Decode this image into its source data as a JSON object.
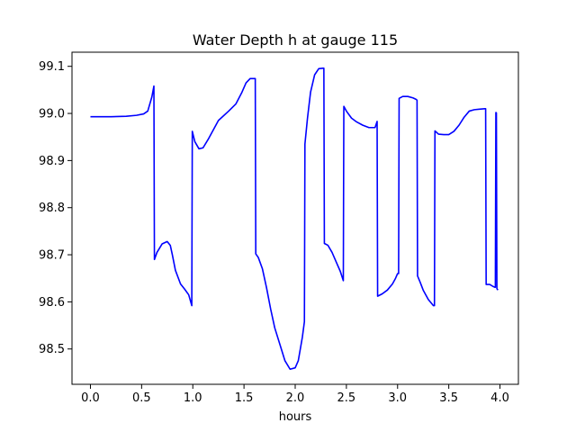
{
  "chart_data": {
    "type": "line",
    "title": "Water Depth h at gauge 115",
    "xlabel": "hours",
    "ylabel": "",
    "xlim": [
      -0.18,
      4.18
    ],
    "ylim": [
      98.425,
      99.13
    ],
    "grid": false,
    "xticks": [
      0.0,
      0.5,
      1.0,
      1.5,
      2.0,
      2.5,
      3.0,
      3.5,
      4.0
    ],
    "xtick_labels": [
      "0.0",
      "0.5",
      "1.0",
      "1.5",
      "2.0",
      "2.5",
      "3.0",
      "3.5",
      "4.0"
    ],
    "yticks": [
      98.5,
      98.6,
      98.7,
      98.8,
      98.9,
      99.0,
      99.1
    ],
    "ytick_labels": [
      "98.5",
      "98.6",
      "98.7",
      "98.8",
      "98.9",
      "99.0",
      "99.1"
    ],
    "color": "#0000ff",
    "series": [
      {
        "x": [
          0.0,
          0.2,
          0.35,
          0.45,
          0.52,
          0.56,
          0.6,
          0.62,
          0.625,
          0.65,
          0.7,
          0.75,
          0.78,
          0.8,
          0.83,
          0.88,
          0.92,
          0.96,
          0.99,
          0.995,
          1.02,
          1.06,
          1.1,
          1.15,
          1.25,
          1.35,
          1.42,
          1.48,
          1.52,
          1.56,
          1.6,
          1.61,
          1.615,
          1.64,
          1.68,
          1.72,
          1.76,
          1.8,
          1.85,
          1.9,
          1.95,
          2.0,
          2.03,
          2.05,
          2.07,
          2.09,
          2.095,
          2.12,
          2.15,
          2.19,
          2.23,
          2.27,
          2.28,
          2.285,
          2.32,
          2.36,
          2.4,
          2.44,
          2.47,
          2.475,
          2.5,
          2.55,
          2.6,
          2.66,
          2.72,
          2.78,
          2.8,
          2.805,
          2.85,
          2.9,
          2.95,
          2.98,
          3.0,
          3.01,
          3.015,
          3.05,
          3.1,
          3.15,
          3.18,
          3.19,
          3.195,
          3.22,
          3.25,
          3.3,
          3.35,
          3.36,
          3.365,
          3.4,
          3.45,
          3.5,
          3.55,
          3.6,
          3.65,
          3.7,
          3.75,
          3.8,
          3.85,
          3.86,
          3.865,
          3.9,
          3.93,
          3.95,
          3.955,
          3.96,
          3.965,
          3.97,
          3.98
        ],
        "y": [
          98.993,
          98.993,
          98.994,
          98.996,
          98.999,
          99.005,
          99.035,
          99.058,
          98.69,
          98.705,
          98.723,
          98.728,
          98.72,
          98.7,
          98.667,
          98.638,
          98.627,
          98.615,
          98.592,
          98.962,
          98.94,
          98.925,
          98.927,
          98.945,
          98.985,
          99.005,
          99.02,
          99.045,
          99.065,
          99.074,
          99.074,
          99.074,
          98.702,
          98.694,
          98.67,
          98.63,
          98.585,
          98.545,
          98.51,
          98.475,
          98.457,
          98.46,
          98.475,
          98.5,
          98.525,
          98.558,
          98.935,
          98.99,
          99.045,
          99.082,
          99.095,
          99.096,
          99.096,
          98.724,
          98.72,
          98.705,
          98.685,
          98.665,
          98.645,
          99.015,
          99.005,
          98.99,
          98.982,
          98.975,
          98.97,
          98.97,
          98.983,
          98.612,
          98.617,
          98.625,
          98.638,
          98.65,
          98.66,
          98.66,
          99.032,
          99.036,
          99.036,
          99.033,
          99.03,
          99.028,
          98.655,
          98.642,
          98.625,
          98.605,
          98.592,
          98.592,
          98.963,
          98.956,
          98.955,
          98.955,
          98.962,
          98.975,
          98.992,
          99.005,
          99.008,
          99.009,
          99.01,
          99.01,
          98.637,
          98.637,
          98.633,
          98.631,
          98.631,
          99.002,
          99.001,
          98.628,
          98.625
        ]
      }
    ]
  }
}
